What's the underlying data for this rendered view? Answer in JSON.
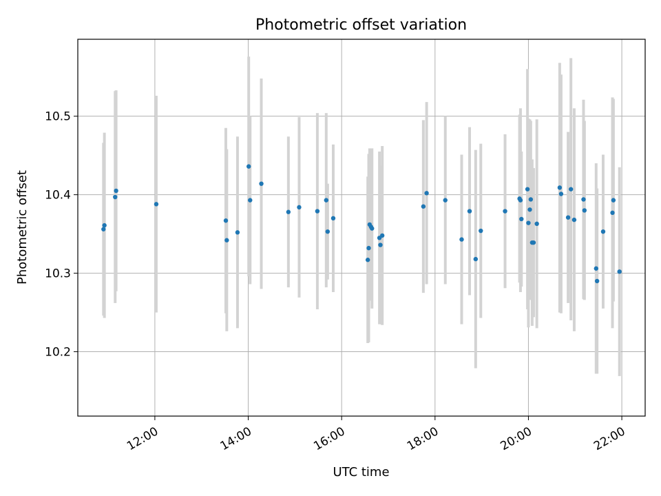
{
  "chart_data": {
    "type": "scatter",
    "title": "Photometric offset variation",
    "xlabel": "UTC time",
    "ylabel": "Photometric offset",
    "x_tick_labels": [
      "12:00",
      "14:00",
      "16:00",
      "18:00",
      "20:00",
      "22:00"
    ],
    "x_ticks_hours": [
      12,
      14,
      16,
      18,
      20,
      22
    ],
    "y_ticks": [
      10.2,
      10.3,
      10.4,
      10.5
    ],
    "xlim_hours": [
      10.35,
      22.5
    ],
    "ylim": [
      10.118,
      10.598
    ],
    "grid": true,
    "colors": {
      "marker": "#1f77b4",
      "errorbar": "#d3d3d3",
      "grid": "#b0b0b0"
    },
    "series": [
      {
        "time_hours": [
          10.9,
          10.92,
          11.15,
          11.17,
          12.03,
          13.52,
          13.54,
          13.77,
          14.01,
          14.04,
          14.28,
          14.86,
          15.09,
          15.48,
          15.67,
          15.7,
          15.82,
          16.56,
          16.58,
          16.6,
          16.63,
          16.65,
          16.81,
          16.83,
          16.87,
          17.75,
          17.82,
          18.22,
          18.57,
          18.74,
          18.87,
          18.98,
          19.5,
          19.81,
          19.83,
          19.85,
          19.98,
          20.0,
          20.03,
          20.05,
          20.08,
          20.11,
          20.18,
          20.67,
          20.7,
          20.85,
          20.91,
          20.98,
          21.18,
          21.2,
          21.45,
          21.47,
          21.6,
          21.8,
          21.82,
          21.95
        ],
        "offset": [
          10.356,
          10.361,
          10.397,
          10.405,
          10.388,
          10.367,
          10.342,
          10.352,
          10.436,
          10.393,
          10.414,
          10.378,
          10.384,
          10.379,
          10.393,
          10.353,
          10.37,
          10.317,
          10.332,
          10.362,
          10.359,
          10.357,
          10.345,
          10.336,
          10.348,
          10.385,
          10.402,
          10.393,
          10.343,
          10.379,
          10.318,
          10.354,
          10.379,
          10.395,
          10.393,
          10.369,
          10.407,
          10.364,
          10.381,
          10.394,
          10.339,
          10.339,
          10.363,
          10.409,
          10.401,
          10.371,
          10.407,
          10.368,
          10.394,
          10.38,
          10.306,
          10.29,
          10.353,
          10.377,
          10.393,
          10.302
        ],
        "error": [
          0.11,
          0.118,
          0.135,
          0.128,
          0.138,
          0.118,
          0.116,
          0.122,
          0.14,
          0.107,
          0.134,
          0.096,
          0.115,
          0.125,
          0.111,
          0.061,
          0.094,
          0.106,
          0.12,
          0.097,
          0.087,
          0.102,
          0.11,
          0.101,
          0.114,
          0.11,
          0.116,
          0.107,
          0.108,
          0.107,
          0.139,
          0.111,
          0.098,
          0.107,
          0.117,
          0.086,
          0.153,
          0.133,
          0.115,
          0.1,
          0.106,
          0.095,
          0.133,
          0.159,
          0.152,
          0.109,
          0.167,
          0.142,
          0.127,
          0.114,
          0.134,
          0.118,
          0.098,
          0.147,
          0.129,
          0.133
        ]
      }
    ]
  }
}
